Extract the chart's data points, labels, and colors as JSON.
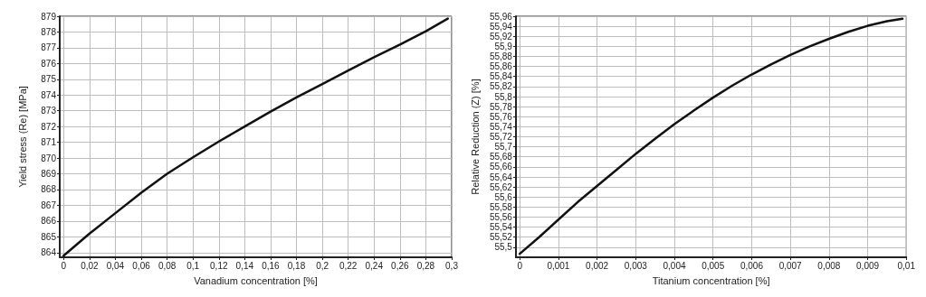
{
  "chart_data": [
    {
      "type": "line",
      "xlabel": "Vanadium concentration [%]",
      "ylabel": "Yield stress (Re) [MPa]",
      "grid": true,
      "marker": "none",
      "line_style": "solid",
      "xlim": [
        -0.003,
        0.3
      ],
      "ylim": [
        863.7,
        879
      ],
      "xticks": [
        0,
        {
          "value": 0.02,
          "label": "0,02"
        },
        {
          "value": 0.04,
          "label": "0,04"
        },
        {
          "value": 0.06,
          "label": "0,06"
        },
        {
          "value": 0.08,
          "label": "0,08"
        },
        {
          "value": 0.1,
          "label": "0,1"
        },
        {
          "value": 0.12,
          "label": "0,12"
        },
        {
          "value": 0.14,
          "label": "0,14"
        },
        {
          "value": 0.16,
          "label": "0,16"
        },
        {
          "value": 0.18,
          "label": "0,18"
        },
        {
          "value": 0.2,
          "label": "0,2"
        },
        {
          "value": 0.22,
          "label": "0,22"
        },
        {
          "value": 0.24,
          "label": "0,24"
        },
        {
          "value": 0.26,
          "label": "0,26"
        },
        {
          "value": 0.28,
          "label": "0,28"
        },
        {
          "value": 0.3,
          "label": "0,3"
        }
      ],
      "yticks": [
        864,
        865,
        866,
        867,
        868,
        869,
        870,
        871,
        872,
        873,
        874,
        875,
        876,
        877,
        878,
        879
      ],
      "series": [
        {
          "color": "#111111",
          "x": [
            0,
            0.02,
            0.04,
            0.06,
            0.08,
            0.1,
            0.12,
            0.14,
            0.16,
            0.18,
            0.2,
            0.22,
            0.24,
            0.26,
            0.28,
            0.297
          ],
          "values": [
            863.8,
            865.2,
            866.5,
            867.8,
            869.0,
            870.05,
            871.05,
            872.0,
            872.95,
            873.85,
            874.7,
            875.55,
            876.4,
            877.2,
            878.05,
            878.85
          ]
        }
      ]
    },
    {
      "type": "line",
      "xlabel": "Titanium concentration [%]",
      "ylabel": "Relative Reduction (Z) [%]",
      "grid": true,
      "marker": "none",
      "line_style": "solid",
      "xlim": [
        -0.0001,
        0.01
      ],
      "ylim": [
        55.48,
        55.96
      ],
      "xticks": [
        0,
        {
          "value": 0.001,
          "label": "0,001"
        },
        {
          "value": 0.002,
          "label": "0,002"
        },
        {
          "value": 0.003,
          "label": "0,003"
        },
        {
          "value": 0.004,
          "label": "0,004"
        },
        {
          "value": 0.005,
          "label": "0,005"
        },
        {
          "value": 0.006,
          "label": "0,006"
        },
        {
          "value": 0.007,
          "label": "0,007"
        },
        {
          "value": 0.008,
          "label": "0,008"
        },
        {
          "value": 0.009,
          "label": "0,009"
        },
        {
          "value": 0.01,
          "label": "0,01"
        }
      ],
      "yticks": [
        {
          "value": 55.5,
          "label": "55,5"
        },
        {
          "value": 55.52,
          "label": "55,52"
        },
        {
          "value": 55.54,
          "label": "55,54"
        },
        {
          "value": 55.56,
          "label": "55,56"
        },
        {
          "value": 55.58,
          "label": "55,58"
        },
        {
          "value": 55.6,
          "label": "55,6"
        },
        {
          "value": 55.62,
          "label": "55,62"
        },
        {
          "value": 55.64,
          "label": "55,64"
        },
        {
          "value": 55.66,
          "label": "55,66"
        },
        {
          "value": 55.68,
          "label": "55,68"
        },
        {
          "value": 55.7,
          "label": "55,7"
        },
        {
          "value": 55.72,
          "label": "55,72"
        },
        {
          "value": 55.74,
          "label": "55,74"
        },
        {
          "value": 55.76,
          "label": "55,76"
        },
        {
          "value": 55.78,
          "label": "55,78"
        },
        {
          "value": 55.8,
          "label": "55,8"
        },
        {
          "value": 55.82,
          "label": "55,82"
        },
        {
          "value": 55.84,
          "label": "55,84"
        },
        {
          "value": 55.86,
          "label": "55,86"
        },
        {
          "value": 55.88,
          "label": "55,88"
        },
        {
          "value": 55.9,
          "label": "55,9"
        },
        {
          "value": 55.92,
          "label": "55,92"
        },
        {
          "value": 55.94,
          "label": "55,94"
        },
        {
          "value": 55.96,
          "label": "55,96"
        }
      ],
      "series": [
        {
          "color": "#111111",
          "x": [
            0,
            0.0005,
            0.001,
            0.0015,
            0.002,
            0.0025,
            0.003,
            0.0035,
            0.004,
            0.0045,
            0.005,
            0.0055,
            0.006,
            0.0065,
            0.007,
            0.0075,
            0.008,
            0.0085,
            0.009,
            0.0095,
            0.0099
          ],
          "values": [
            55.487,
            55.52,
            55.555,
            55.59,
            55.622,
            55.654,
            55.686,
            55.716,
            55.745,
            55.772,
            55.798,
            55.822,
            55.844,
            55.864,
            55.883,
            55.9,
            55.915,
            55.929,
            55.941,
            55.95,
            55.955
          ]
        }
      ]
    }
  ]
}
